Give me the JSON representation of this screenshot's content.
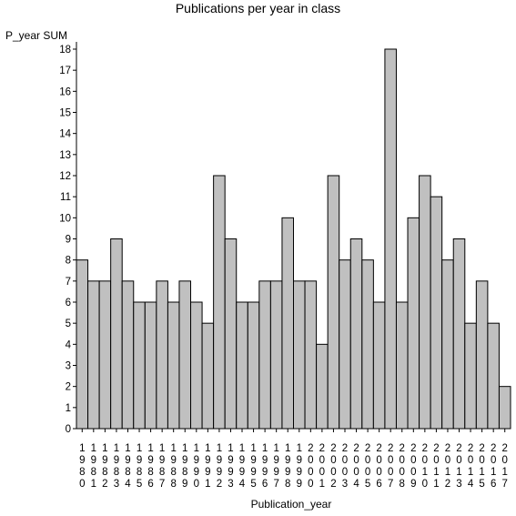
{
  "chart_data": {
    "type": "bar",
    "title": "Publications per year in class",
    "ylabel": "P_year SUM",
    "xlabel": "Publication_year",
    "ylim": [
      0,
      18
    ],
    "yticks": [
      0,
      1,
      2,
      3,
      4,
      5,
      6,
      7,
      8,
      9,
      10,
      11,
      12,
      13,
      14,
      15,
      16,
      17,
      18
    ],
    "grid": false,
    "categories": [
      "1980",
      "1981",
      "1982",
      "1983",
      "1984",
      "1985",
      "1986",
      "1987",
      "1988",
      "1989",
      "1990",
      "1991",
      "1992",
      "1993",
      "1994",
      "1995",
      "1996",
      "1997",
      "1998",
      "1999",
      "2000",
      "2001",
      "2002",
      "2003",
      "2004",
      "2005",
      "2006",
      "2007",
      "2008",
      "2009",
      "2010",
      "2011",
      "2012",
      "2013",
      "2014",
      "2015",
      "2016",
      "2017"
    ],
    "values": [
      8,
      7,
      7,
      9,
      7,
      6,
      6,
      7,
      6,
      7,
      6,
      5,
      12,
      9,
      6,
      6,
      7,
      7,
      10,
      7,
      7,
      4,
      12,
      8,
      9,
      8,
      6,
      18,
      6,
      10,
      12,
      11,
      8,
      9,
      5,
      7,
      5,
      2
    ],
    "bar_color": "#c0c0c0",
    "bar_edge_color": "#000000"
  }
}
